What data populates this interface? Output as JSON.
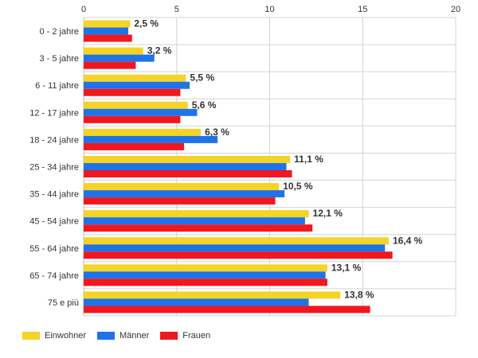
{
  "chart_data": {
    "type": "bar",
    "orientation": "horizontal",
    "categories": [
      "0 - 2 jahre",
      "3 - 5 jahre",
      "6 - 11 jahre",
      "12 - 17 jahre",
      "18 - 24 jahre",
      "25 - 34 jahre",
      "35 - 44 jahre",
      "45 - 54 jahre",
      "55 - 64 jahre",
      "65 - 74 jahre",
      "75 e più"
    ],
    "series": [
      {
        "name": "Einwohner",
        "color": "#f5d327",
        "values": [
          2.5,
          3.2,
          5.5,
          5.6,
          6.3,
          11.1,
          10.5,
          12.1,
          16.4,
          13.1,
          13.8
        ]
      },
      {
        "name": "Männer",
        "color": "#1f73e8",
        "values": [
          2.4,
          3.8,
          5.7,
          6.1,
          7.2,
          10.9,
          10.8,
          11.9,
          16.2,
          13.0,
          12.1
        ]
      },
      {
        "name": "Frauen",
        "color": "#f2161f",
        "values": [
          2.6,
          2.8,
          5.2,
          5.2,
          5.4,
          11.2,
          10.3,
          12.3,
          16.6,
          13.1,
          15.4
        ]
      }
    ],
    "data_labels": [
      "2,5 %",
      "3,2 %",
      "5,5 %",
      "5,6 %",
      "6,3 %",
      "11,1 %",
      "10,5 %",
      "12,1 %",
      "16,4 %",
      "13,1 %",
      "13,8 %"
    ],
    "xlim": [
      0,
      20
    ],
    "xticks": [
      "0",
      "5",
      "10",
      "15",
      "20"
    ],
    "xtick_values": [
      0,
      5,
      10,
      15,
      20
    ],
    "grid": true,
    "legend_position": "bottom-left"
  }
}
